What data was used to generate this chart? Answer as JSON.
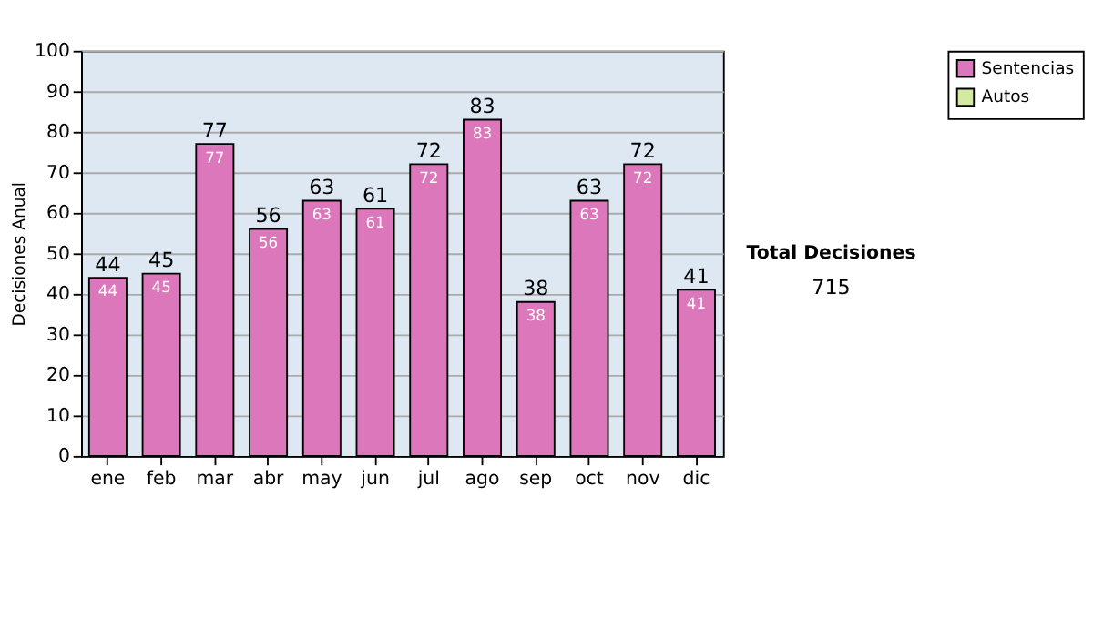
{
  "chart_data": {
    "type": "bar",
    "ylabel": "Decisiones Anual",
    "categories": [
      "ene",
      "feb",
      "mar",
      "abr",
      "may",
      "jun",
      "jul",
      "ago",
      "sep",
      "oct",
      "nov",
      "dic"
    ],
    "series": [
      {
        "name": "Sentencias",
        "color": "#dd77bb",
        "values": [
          44,
          45,
          77,
          56,
          63,
          61,
          72,
          83,
          38,
          63,
          72,
          41
        ]
      },
      {
        "name": "Autos",
        "color": "#d4eaa0",
        "values": [
          null,
          null,
          null,
          null,
          null,
          null,
          null,
          null,
          null,
          null,
          null,
          null
        ]
      }
    ],
    "stacked": true,
    "data_labels": true,
    "totals": [
      "44",
      "45",
      "77",
      "56",
      "63",
      "61",
      "72",
      "83",
      "38",
      "63",
      "72",
      "41"
    ],
    "ylim": [
      0,
      100
    ],
    "yticks": [
      0,
      10,
      20,
      30,
      40,
      50,
      60,
      70,
      80,
      90,
      100
    ],
    "grid": "y",
    "legend": "right",
    "annotations": [
      "Total Decisiones",
      "715"
    ]
  }
}
